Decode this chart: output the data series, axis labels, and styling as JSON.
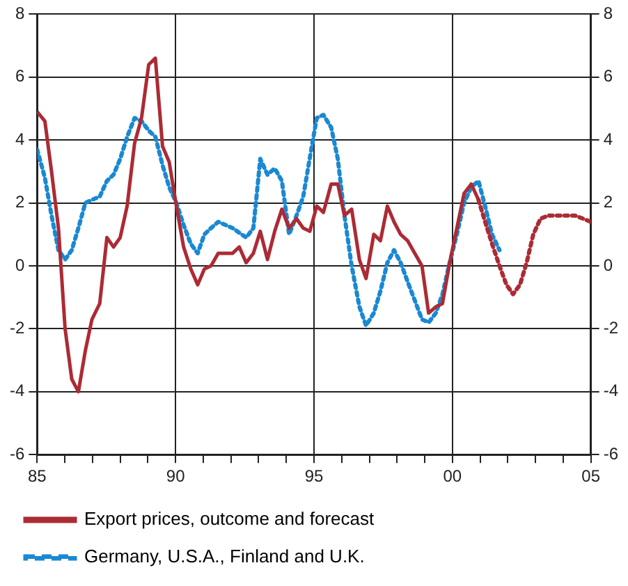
{
  "chart_data": {
    "type": "line",
    "xlim": [
      1985,
      2005
    ],
    "xticks": [
      {
        "value": 1985,
        "label": "85"
      },
      {
        "value": 1986,
        "label": null
      },
      {
        "value": 1987,
        "label": null
      },
      {
        "value": 1988,
        "label": null
      },
      {
        "value": 1989,
        "label": null
      },
      {
        "value": 1990,
        "label": "90"
      },
      {
        "value": 1991,
        "label": null
      },
      {
        "value": 1992,
        "label": null
      },
      {
        "value": 1993,
        "label": null
      },
      {
        "value": 1994,
        "label": null
      },
      {
        "value": 1995,
        "label": "95"
      },
      {
        "value": 1996,
        "label": null
      },
      {
        "value": 1997,
        "label": null
      },
      {
        "value": 1998,
        "label": null
      },
      {
        "value": 1999,
        "label": null
      },
      {
        "value": 2000,
        "label": "00"
      },
      {
        "value": 2001,
        "label": null
      },
      {
        "value": 2002,
        "label": null
      },
      {
        "value": 2003,
        "label": null
      },
      {
        "value": 2004,
        "label": null
      },
      {
        "value": 2005,
        "label": "05"
      }
    ],
    "ylim": [
      -6,
      8
    ],
    "yticks": [
      -6,
      -4,
      -2,
      0,
      2,
      4,
      6,
      8
    ],
    "y2lim": [
      -6,
      8
    ],
    "y2ticks": [
      -6,
      -4,
      -2,
      0,
      2,
      4,
      6,
      8
    ],
    "grid": true,
    "legend": "bottom",
    "marker": "none",
    "series": [
      {
        "name": "Export prices, outcome and forecast",
        "color": "#ac2b34",
        "line_style": "solid",
        "x": [
          1985.0,
          1985.28,
          1985.52,
          1985.77,
          1986.01,
          1986.25,
          1986.49,
          1986.74,
          1986.98,
          1987.26,
          1987.52,
          1987.76,
          1988.0,
          1988.25,
          1988.52,
          1988.77,
          1989.03,
          1989.27,
          1989.53,
          1989.77,
          1990.03,
          1990.29,
          1990.55,
          1990.8,
          1991.04,
          1991.28,
          1991.54,
          1992.06,
          1992.3,
          1992.55,
          1992.81,
          1993.06,
          1993.32,
          1993.58,
          1993.84,
          1994.1,
          1994.37,
          1994.61,
          1994.85,
          1995.1,
          1995.34,
          1995.62,
          1995.86,
          1996.1,
          1996.36,
          1996.64,
          1996.88,
          1997.16,
          1997.4,
          1997.65,
          1997.89,
          1998.13,
          1998.38,
          1998.64,
          1998.9,
          1999.14,
          1999.4,
          1999.64,
          1999.9,
          2000.16,
          2000.42,
          2000.68,
          2000.94
        ],
        "values": [
          4.9,
          4.6,
          3.0,
          1.2,
          -2.0,
          -3.6,
          -4.0,
          -2.7,
          -1.7,
          -1.2,
          0.9,
          0.6,
          0.9,
          1.9,
          3.9,
          4.7,
          6.4,
          6.6,
          3.8,
          3.3,
          1.9,
          0.6,
          -0.1,
          -0.6,
          -0.1,
          0.0,
          0.4,
          0.4,
          0.6,
          0.1,
          0.4,
          1.1,
          0.2,
          1.1,
          1.8,
          1.2,
          1.5,
          1.2,
          1.1,
          1.9,
          1.7,
          2.6,
          2.6,
          1.6,
          1.8,
          0.2,
          -0.4,
          1.0,
          0.8,
          1.9,
          1.4,
          1.0,
          0.8,
          0.4,
          0.0,
          -1.5,
          -1.3,
          -1.2,
          0.1,
          1.2,
          2.3,
          2.6,
          2.1
        ]
      },
      {
        "color": "#ac2b34",
        "line_style": "dotted",
        "x": [
          2000.94,
          2001.18,
          2001.43,
          2001.7,
          2001.95,
          2002.19,
          2002.44,
          2002.68,
          2002.92,
          2003.18,
          2003.46,
          2003.94,
          2004.43,
          2005.0
        ],
        "values": [
          2.1,
          1.4,
          0.7,
          0.0,
          -0.6,
          -0.9,
          -0.6,
          0.1,
          1.0,
          1.5,
          1.6,
          1.6,
          1.6,
          1.4
        ]
      },
      {
        "name": "Germany, U.S.A., Finland and U.K.",
        "color": "#1a88d2",
        "line_style": "dotted",
        "x": [
          1985.0,
          1985.28,
          1985.52,
          1985.77,
          1986.01,
          1986.25,
          1986.49,
          1986.74,
          1986.98,
          1987.26,
          1987.52,
          1987.76,
          1988.0,
          1988.25,
          1988.52,
          1988.77,
          1989.03,
          1989.27,
          1989.53,
          1989.77,
          1990.03,
          1990.29,
          1990.55,
          1990.8,
          1991.04,
          1991.28,
          1991.54,
          1992.06,
          1992.55,
          1992.81,
          1993.06,
          1993.32,
          1993.58,
          1993.84,
          1994.1,
          1994.37,
          1994.61,
          1994.94,
          1995.1,
          1995.34,
          1995.62,
          1995.86,
          1996.1,
          1996.36,
          1996.64,
          1996.88,
          1997.16,
          1997.4,
          1997.65,
          1997.89,
          1998.13,
          1998.38,
          1998.64,
          1998.9,
          1999.14,
          1999.4,
          1999.64,
          1999.9,
          2000.16,
          2000.42,
          2000.68,
          2000.94,
          2001.18,
          2001.43,
          2001.7
        ],
        "values": [
          3.7,
          2.8,
          1.6,
          0.5,
          0.2,
          0.5,
          1.2,
          2.0,
          2.1,
          2.2,
          2.7,
          2.9,
          3.4,
          4.1,
          4.7,
          4.6,
          4.3,
          4.1,
          3.2,
          2.5,
          2.0,
          1.3,
          0.7,
          0.4,
          1.0,
          1.2,
          1.4,
          1.2,
          0.9,
          1.2,
          3.4,
          2.9,
          3.1,
          2.7,
          1.0,
          1.6,
          2.2,
          3.9,
          4.7,
          4.8,
          4.4,
          3.4,
          1.6,
          0.0,
          -1.3,
          -1.9,
          -1.5,
          -0.8,
          0.1,
          0.5,
          0.1,
          -0.5,
          -1.1,
          -1.7,
          -1.8,
          -1.5,
          -0.9,
          0.1,
          1.0,
          2.0,
          2.5,
          2.7,
          1.9,
          1.0,
          0.5
        ]
      }
    ]
  }
}
